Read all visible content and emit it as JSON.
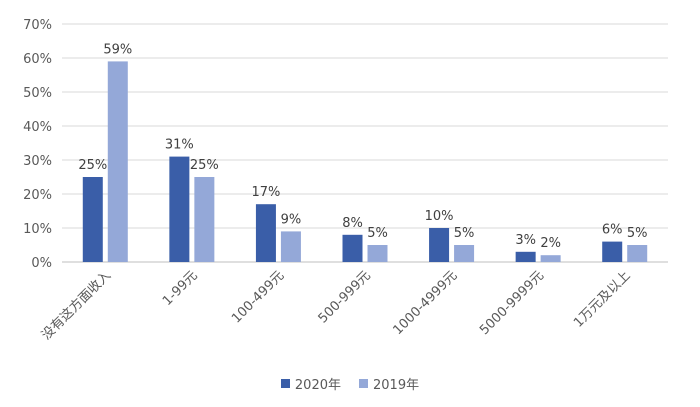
{
  "chart_data": {
    "type": "bar",
    "categories": [
      "没有这方面收入",
      "1-99元",
      "100-499元",
      "500-999元",
      "1000-4999元",
      "5000-9999元",
      "1万元及以上"
    ],
    "series": [
      {
        "name": "2020年",
        "values": [
          25,
          31,
          17,
          8,
          10,
          3,
          6
        ],
        "labels": [
          "25%",
          "31%",
          "17%",
          "8%",
          "10%",
          "3%",
          "6%"
        ],
        "color": "#3a5ea8"
      },
      {
        "name": "2019年",
        "values": [
          59,
          25,
          9,
          5,
          5,
          2,
          5
        ],
        "labels": [
          "59%",
          "25%",
          "9%",
          "5%",
          "5%",
          "2%",
          "5%"
        ],
        "color": "#94a8d8"
      }
    ],
    "ylim": [
      0,
      70
    ],
    "yticks": [
      "0%",
      "10%",
      "20%",
      "30%",
      "40%",
      "50%",
      "60%",
      "70%"
    ],
    "grid": true,
    "legend_position": "bottom"
  }
}
